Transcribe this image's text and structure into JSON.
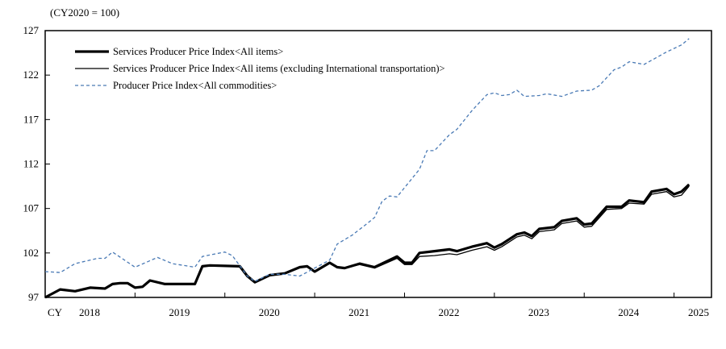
{
  "chart_data": {
    "type": "line",
    "unit_note": "(CY2020 = 100)",
    "xlim": [
      "2018-01",
      "2025-06"
    ],
    "ylim": [
      97,
      127
    ],
    "y_ticks": [
      97,
      102,
      107,
      112,
      117,
      122,
      127
    ],
    "x_prefix_label": "CY",
    "x_tick_labels": [
      "2018",
      "2019",
      "2020",
      "2021",
      "2022",
      "2023",
      "2024",
      "2025"
    ],
    "grid": false,
    "legend_position": "top-left",
    "series": [
      {
        "name": "Services Producer Price Index<All items>",
        "style": "thick-solid",
        "color": "#000000",
        "points": [
          [
            "2018-01",
            97.0
          ],
          [
            "2018-03",
            97.9
          ],
          [
            "2018-05",
            97.7
          ],
          [
            "2018-07",
            98.1
          ],
          [
            "2018-09",
            98.0
          ],
          [
            "2018-10",
            98.5
          ],
          [
            "2018-11",
            98.6
          ],
          [
            "2018-12",
            98.6
          ],
          [
            "2019-01",
            98.1
          ],
          [
            "2019-02",
            98.2
          ],
          [
            "2019-03",
            98.9
          ],
          [
            "2019-05",
            98.5
          ],
          [
            "2019-09",
            98.5
          ],
          [
            "2019-10",
            100.5
          ],
          [
            "2019-11",
            100.6
          ],
          [
            "2020-03",
            100.5
          ],
          [
            "2020-04",
            99.4
          ],
          [
            "2020-05",
            98.7
          ],
          [
            "2020-07",
            99.5
          ],
          [
            "2020-09",
            99.7
          ],
          [
            "2020-11",
            100.4
          ],
          [
            "2020-12",
            100.5
          ],
          [
            "2021-01",
            99.9
          ],
          [
            "2021-02",
            100.4
          ],
          [
            "2021-03",
            100.9
          ],
          [
            "2021-04",
            100.4
          ],
          [
            "2021-05",
            100.3
          ],
          [
            "2021-07",
            100.8
          ],
          [
            "2021-09",
            100.4
          ],
          [
            "2021-12",
            101.6
          ],
          [
            "2022-01",
            100.9
          ],
          [
            "2022-02",
            100.9
          ],
          [
            "2022-03",
            102.0
          ],
          [
            "2022-05",
            102.2
          ],
          [
            "2022-07",
            102.4
          ],
          [
            "2022-08",
            102.2
          ],
          [
            "2022-10",
            102.7
          ],
          [
            "2022-12",
            103.1
          ],
          [
            "2023-01",
            102.6
          ],
          [
            "2023-02",
            103.0
          ],
          [
            "2023-04",
            104.1
          ],
          [
            "2023-05",
            104.3
          ],
          [
            "2023-06",
            103.9
          ],
          [
            "2023-07",
            104.7
          ],
          [
            "2023-09",
            104.9
          ],
          [
            "2023-10",
            105.6
          ],
          [
            "2023-12",
            105.9
          ],
          [
            "2024-01",
            105.2
          ],
          [
            "2024-02",
            105.3
          ],
          [
            "2024-04",
            107.2
          ],
          [
            "2024-06",
            107.2
          ],
          [
            "2024-07",
            107.9
          ],
          [
            "2024-09",
            107.7
          ],
          [
            "2024-10",
            108.9
          ],
          [
            "2024-12",
            109.2
          ],
          [
            "2025-01",
            108.6
          ],
          [
            "2025-02",
            108.9
          ],
          [
            "2025-03",
            109.7
          ]
        ]
      },
      {
        "name": "Services Producer Price Index<All items (excluding International transportation)>",
        "style": "thin-solid",
        "color": "#000000",
        "points": [
          [
            "2018-01",
            97.0
          ],
          [
            "2018-03",
            97.9
          ],
          [
            "2018-05",
            97.7
          ],
          [
            "2018-07",
            98.1
          ],
          [
            "2018-09",
            98.0
          ],
          [
            "2018-10",
            98.5
          ],
          [
            "2018-11",
            98.6
          ],
          [
            "2018-12",
            98.6
          ],
          [
            "2019-01",
            98.1
          ],
          [
            "2019-02",
            98.2
          ],
          [
            "2019-03",
            98.9
          ],
          [
            "2019-05",
            98.5
          ],
          [
            "2019-09",
            98.5
          ],
          [
            "2019-10",
            100.5
          ],
          [
            "2019-11",
            100.6
          ],
          [
            "2020-03",
            100.5
          ],
          [
            "2020-04",
            99.4
          ],
          [
            "2020-05",
            98.7
          ],
          [
            "2020-07",
            99.5
          ],
          [
            "2020-09",
            99.7
          ],
          [
            "2020-11",
            100.4
          ],
          [
            "2020-12",
            100.5
          ],
          [
            "2021-01",
            99.9
          ],
          [
            "2021-02",
            100.4
          ],
          [
            "2021-03",
            100.9
          ],
          [
            "2021-04",
            100.4
          ],
          [
            "2021-05",
            100.3
          ],
          [
            "2021-07",
            100.7
          ],
          [
            "2021-09",
            100.3
          ],
          [
            "2021-12",
            101.4
          ],
          [
            "2022-01",
            100.7
          ],
          [
            "2022-02",
            100.7
          ],
          [
            "2022-03",
            101.6
          ],
          [
            "2022-05",
            101.7
          ],
          [
            "2022-07",
            101.9
          ],
          [
            "2022-08",
            101.8
          ],
          [
            "2022-10",
            102.3
          ],
          [
            "2022-12",
            102.7
          ],
          [
            "2023-01",
            102.3
          ],
          [
            "2023-02",
            102.7
          ],
          [
            "2023-04",
            103.8
          ],
          [
            "2023-05",
            104.0
          ],
          [
            "2023-06",
            103.6
          ],
          [
            "2023-07",
            104.4
          ],
          [
            "2023-09",
            104.6
          ],
          [
            "2023-10",
            105.3
          ],
          [
            "2023-12",
            105.6
          ],
          [
            "2024-01",
            104.9
          ],
          [
            "2024-02",
            105.0
          ],
          [
            "2024-04",
            106.9
          ],
          [
            "2024-06",
            107.0
          ],
          [
            "2024-07",
            107.6
          ],
          [
            "2024-09",
            107.5
          ],
          [
            "2024-10",
            108.6
          ],
          [
            "2024-12",
            108.9
          ],
          [
            "2025-01",
            108.3
          ],
          [
            "2025-02",
            108.5
          ],
          [
            "2025-03",
            109.5
          ]
        ]
      },
      {
        "name": "Producer Price Index<All commodities>",
        "style": "dashed",
        "color": "#4a7ab5",
        "points": [
          [
            "2018-01",
            99.9
          ],
          [
            "2018-03",
            99.8
          ],
          [
            "2018-05",
            100.8
          ],
          [
            "2018-08",
            101.4
          ],
          [
            "2018-09",
            101.4
          ],
          [
            "2018-10",
            102.1
          ],
          [
            "2019-01",
            100.4
          ],
          [
            "2019-04",
            101.5
          ],
          [
            "2019-06",
            100.8
          ],
          [
            "2019-09",
            100.4
          ],
          [
            "2019-10",
            101.6
          ],
          [
            "2020-01",
            102.1
          ],
          [
            "2020-02",
            101.7
          ],
          [
            "2020-04",
            99.4
          ],
          [
            "2020-05",
            98.8
          ],
          [
            "2020-07",
            99.6
          ],
          [
            "2020-09",
            99.6
          ],
          [
            "2020-11",
            99.4
          ],
          [
            "2021-01",
            100.3
          ],
          [
            "2021-03",
            101.2
          ],
          [
            "2021-04",
            103.0
          ],
          [
            "2021-06",
            104.0
          ],
          [
            "2021-08",
            105.3
          ],
          [
            "2021-09",
            106.0
          ],
          [
            "2021-10",
            107.8
          ],
          [
            "2021-11",
            108.4
          ],
          [
            "2021-12",
            108.3
          ],
          [
            "2022-03",
            111.4
          ],
          [
            "2022-04",
            113.5
          ],
          [
            "2022-05",
            113.5
          ],
          [
            "2022-07",
            115.3
          ],
          [
            "2022-08",
            115.9
          ],
          [
            "2022-10",
            118.0
          ],
          [
            "2022-12",
            119.8
          ],
          [
            "2023-01",
            120.0
          ],
          [
            "2023-02",
            119.7
          ],
          [
            "2023-03",
            119.8
          ],
          [
            "2023-04",
            120.3
          ],
          [
            "2023-05",
            119.6
          ],
          [
            "2023-07",
            119.7
          ],
          [
            "2023-08",
            119.9
          ],
          [
            "2023-10",
            119.6
          ],
          [
            "2023-12",
            120.2
          ],
          [
            "2024-02",
            120.3
          ],
          [
            "2024-03",
            120.8
          ],
          [
            "2024-05",
            122.6
          ],
          [
            "2024-06",
            122.9
          ],
          [
            "2024-07",
            123.5
          ],
          [
            "2024-09",
            123.2
          ],
          [
            "2024-12",
            124.6
          ],
          [
            "2025-02",
            125.4
          ],
          [
            "2025-03",
            126.1
          ]
        ]
      }
    ]
  }
}
